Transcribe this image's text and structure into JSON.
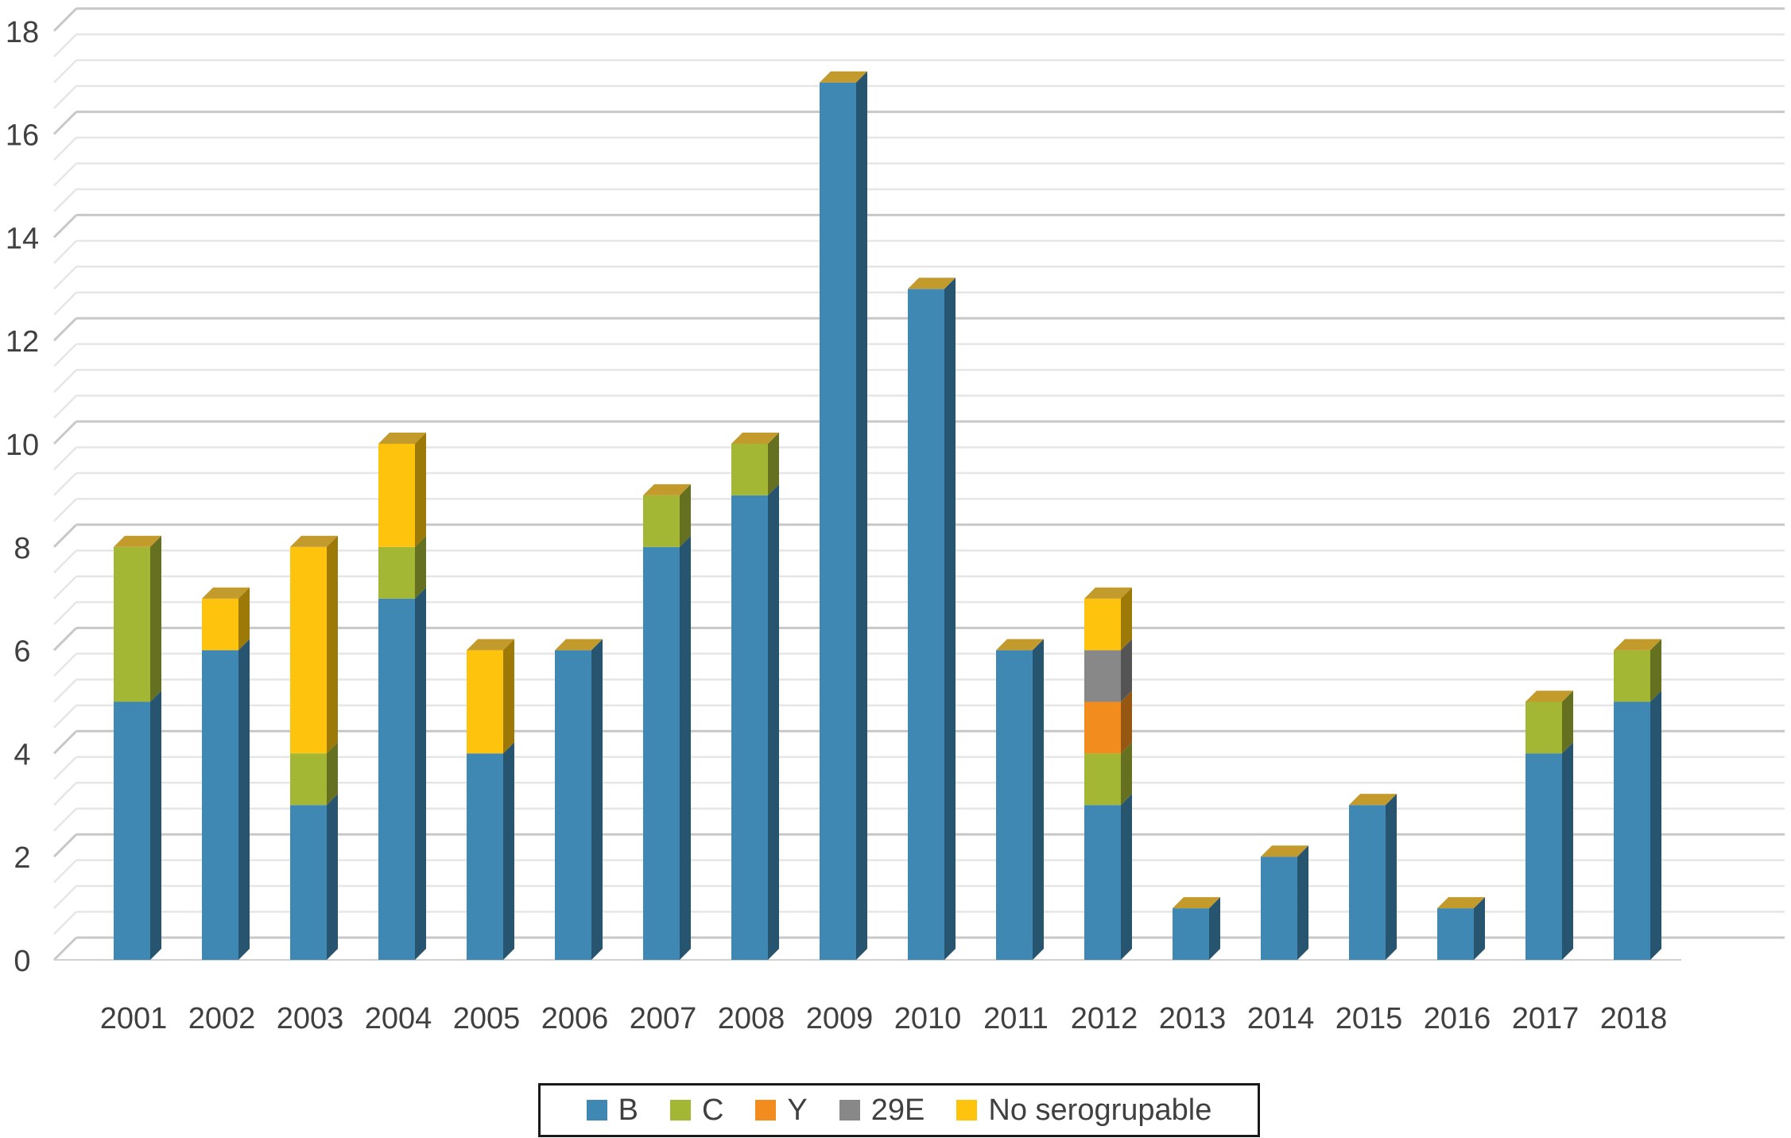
{
  "chart_data": {
    "type": "bar",
    "stacked": true,
    "style": "3d",
    "categories": [
      "2001",
      "2002",
      "2003",
      "2004",
      "2005",
      "2006",
      "2007",
      "2008",
      "2009",
      "2010",
      "2011",
      "2012",
      "2013",
      "2014",
      "2015",
      "2016",
      "2017",
      "2018"
    ],
    "series": [
      {
        "name": "B",
        "color": "#3f88b3",
        "values": [
          5,
          6,
          3,
          7,
          4,
          6,
          8,
          9,
          17,
          13,
          6,
          3,
          1,
          2,
          3,
          1,
          4,
          5
        ]
      },
      {
        "name": "C",
        "color": "#a3b734",
        "values": [
          3,
          0,
          1,
          1,
          0,
          0,
          1,
          1,
          0,
          0,
          0,
          1,
          0,
          0,
          0,
          0,
          1,
          1
        ]
      },
      {
        "name": "Y",
        "color": "#f28c1e",
        "values": [
          0,
          0,
          0,
          0,
          0,
          0,
          0,
          0,
          0,
          0,
          0,
          1,
          0,
          0,
          0,
          0,
          0,
          0
        ]
      },
      {
        "name": "29E",
        "color": "#888888",
        "values": [
          0,
          0,
          0,
          0,
          0,
          0,
          0,
          0,
          0,
          0,
          0,
          1,
          0,
          0,
          0,
          0,
          0,
          0
        ]
      },
      {
        "name": "No serogrupable",
        "color": "#fec30d",
        "values": [
          0,
          1,
          4,
          2,
          2,
          0,
          0,
          0,
          0,
          0,
          0,
          1,
          0,
          0,
          0,
          0,
          0,
          0
        ]
      }
    ],
    "y_ticks": [
      "0",
      "2",
      "4",
      "6",
      "8",
      "10",
      "12",
      "14",
      "16",
      "18"
    ],
    "ylim": [
      0,
      18
    ],
    "grid": true,
    "legend_position": "bottom",
    "title": "",
    "xlabel": "",
    "ylabel": ""
  }
}
